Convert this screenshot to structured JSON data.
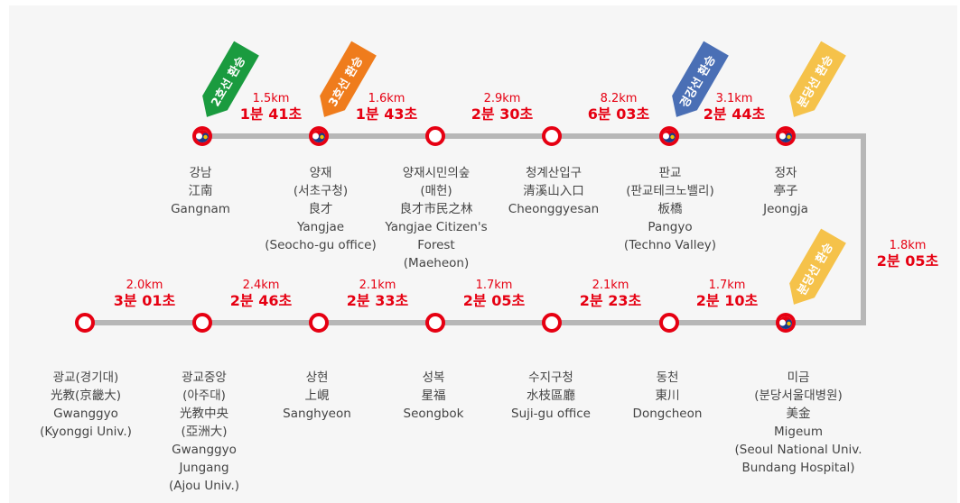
{
  "colors": {
    "line_red": "#e60012",
    "track_gray": "#b7b7b7",
    "line2_green": "#1a9b3f",
    "line3_orange": "#ef7c1c",
    "gyeonggang_blue": "#4a6fb5",
    "bundang_yellow": "#f5c24a"
  },
  "transfer_badges": [
    {
      "id": "line2",
      "label": "2호선 환승",
      "color": "#1a9b3f"
    },
    {
      "id": "line3",
      "label": "3호선 환승",
      "color": "#ef7c1c"
    },
    {
      "id": "gyeonggang",
      "label": "경강선 환승",
      "color": "#4a6fb5"
    },
    {
      "id": "bundang1",
      "label": "분당선 환승",
      "color": "#f5c24a"
    },
    {
      "id": "bundang2",
      "label": "분당선 환승",
      "color": "#f5c24a"
    }
  ],
  "top_row": {
    "stations": [
      {
        "id": "gangnam",
        "transfer": true,
        "lines": [
          "강남",
          "江南",
          "Gangnam"
        ]
      },
      {
        "id": "yangjae",
        "transfer": true,
        "lines": [
          "양재",
          "(서초구청)",
          "良才",
          "Yangjae",
          "(Seocho-gu office)"
        ]
      },
      {
        "id": "yangjae-citizens-forest",
        "transfer": false,
        "lines": [
          "양재시민의숲",
          "(매헌)",
          "良才市民之林",
          "Yangjae Citizen's",
          "Forest",
          "(Maeheon)"
        ]
      },
      {
        "id": "cheonggyesan",
        "transfer": false,
        "lines": [
          "청계산입구",
          "清溪山入口",
          "Cheonggyesan"
        ]
      },
      {
        "id": "pangyo",
        "transfer": true,
        "lines": [
          "판교",
          "(판교테크노밸리)",
          "板橋",
          "Pangyo",
          "(Techno Valley)"
        ]
      },
      {
        "id": "jeongja",
        "transfer": true,
        "lines": [
          "정자",
          "亭子",
          "Jeongja"
        ]
      }
    ],
    "segments": [
      {
        "km": "1.5km",
        "time": "1분 41초"
      },
      {
        "km": "1.6km",
        "time": "1분 43초"
      },
      {
        "km": "2.9km",
        "time": "2분 30초"
      },
      {
        "km": "8.2km",
        "time": "6분 03초"
      },
      {
        "km": "3.1km",
        "time": "2분 44초"
      }
    ]
  },
  "connector_segment": {
    "km": "1.8km",
    "time": "2분 05초"
  },
  "bottom_row": {
    "stations": [
      {
        "id": "gwanggyo",
        "transfer": false,
        "lines": [
          "광교(경기대)",
          "光教(京畿大)",
          "Gwanggyo",
          "(Kyonggi Univ.)"
        ]
      },
      {
        "id": "gwanggyo-jungang",
        "transfer": false,
        "lines": [
          "광교중앙",
          "(아주대)",
          "光教中央",
          "(亞洲大)",
          "Gwanggyo",
          "Jungang",
          "(Ajou Univ.)"
        ]
      },
      {
        "id": "sanghyeon",
        "transfer": false,
        "lines": [
          "상현",
          "上峴",
          "Sanghyeon"
        ]
      },
      {
        "id": "seongbok",
        "transfer": false,
        "lines": [
          "성복",
          "星福",
          "Seongbok"
        ]
      },
      {
        "id": "suji-gu-office",
        "transfer": false,
        "lines": [
          "수지구청",
          "水枝區廳",
          "Suji-gu office"
        ]
      },
      {
        "id": "dongcheon",
        "transfer": false,
        "lines": [
          "동천",
          "東川",
          "Dongcheon"
        ]
      },
      {
        "id": "migeum",
        "transfer": true,
        "lines": [
          "미금",
          "(분당서울대병원)",
          "美金",
          "Migeum",
          "(Seoul National Univ.",
          "Bundang Hospital)"
        ]
      }
    ],
    "segments": [
      {
        "km": "2.0km",
        "time": "3분 01초"
      },
      {
        "km": "2.4km",
        "time": "2분 46초"
      },
      {
        "km": "2.1km",
        "time": "2분 33초"
      },
      {
        "km": "1.7km",
        "time": "2분 05초"
      },
      {
        "km": "2.1km",
        "time": "2분 23초"
      },
      {
        "km": "1.7km",
        "time": "2분 10초"
      }
    ]
  }
}
